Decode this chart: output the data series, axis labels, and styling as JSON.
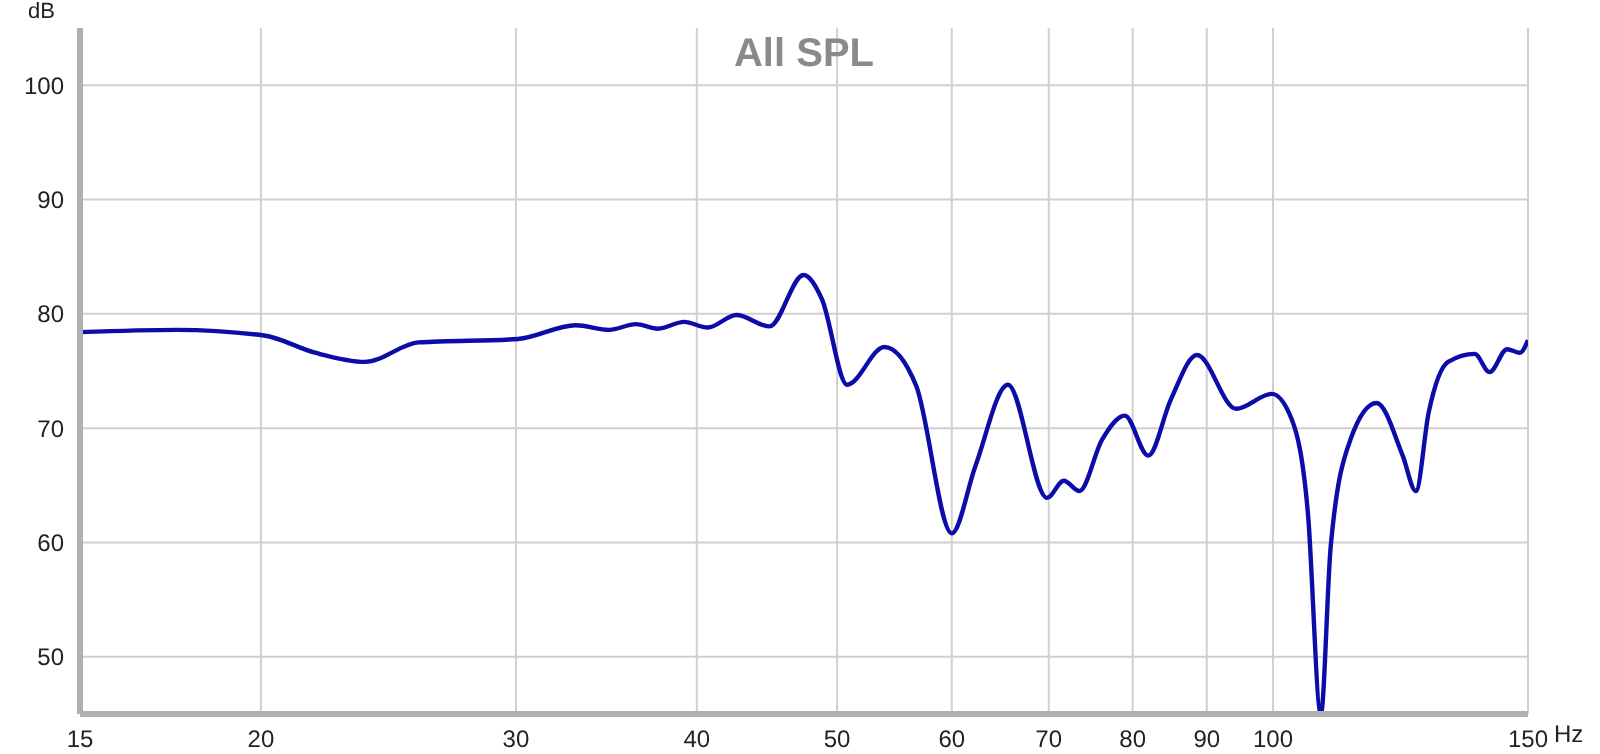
{
  "chart_data": {
    "type": "line",
    "title": "All SPL",
    "xlabel": "Hz",
    "ylabel": "dB",
    "log": "x",
    "grid": true,
    "marker": "none",
    "line_style": "solid",
    "xlim": [
      15,
      150
    ],
    "xticks": [
      15,
      20,
      30,
      40,
      50,
      60,
      70,
      80,
      90,
      100,
      150
    ],
    "ylim": [
      45,
      105
    ],
    "yticks": [
      50,
      60,
      70,
      80,
      90,
      100
    ],
    "series": [
      {
        "color": "#0c0ca8",
        "x": [
          15,
          17.5,
          20.1,
          21.8,
          23.6,
          25.7,
          30.1,
          33,
          34.8,
          36.3,
          37.6,
          39.2,
          40.7,
          42.6,
          44.9,
          47.4,
          48.8,
          50.8,
          53.9,
          56.7,
          60,
          62.3,
          65.6,
          69.8,
          71.7,
          73.5,
          76.2,
          79,
          82,
          85,
          88.6,
          94.3,
          99.8,
          103,
          105.7,
          107.9,
          109.6,
          113.1,
          117.9,
          122.9,
          125.5,
          128.1,
          132.1,
          137.8,
          141.1,
          145.1,
          148.1,
          150
        ],
        "values": [
          78.4,
          78.6,
          78.1,
          76.6,
          75.8,
          77.5,
          77.8,
          79,
          78.6,
          79.1,
          78.7,
          79.3,
          78.8,
          79.9,
          78.9,
          83.4,
          81.3,
          73.8,
          77.1,
          73.7,
          60.8,
          66.7,
          73.8,
          63.9,
          65.4,
          64.5,
          69,
          71.1,
          67.6,
          72.5,
          76.4,
          71.7,
          73,
          70.8,
          62.6,
          45,
          59.6,
          69,
          72.2,
          67.6,
          64.5,
          71.4,
          75.8,
          76.5,
          74.9,
          76.9,
          76.6,
          77.7
        ]
      }
    ]
  }
}
